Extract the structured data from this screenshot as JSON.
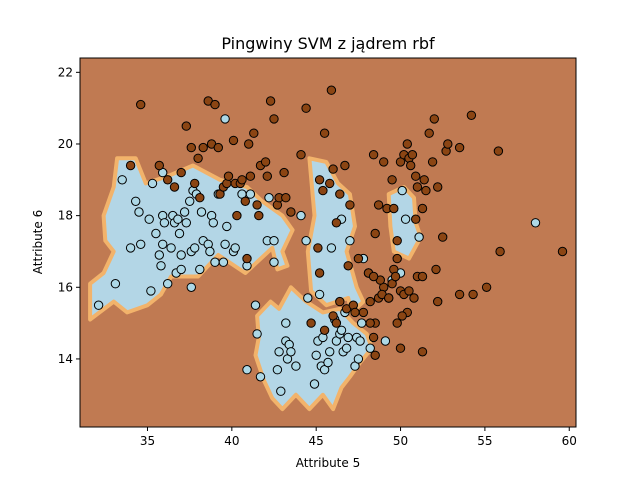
{
  "chart_data": {
    "type": "scatter",
    "title": "Pingwiny SVM z jądrem rbf",
    "xlabel": "Attribute 5",
    "ylabel": "Attribute 6",
    "xlim": [
      31.0,
      60.4
    ],
    "ylim": [
      12.1,
      22.4
    ],
    "x_ticks": [
      35,
      40,
      45,
      50,
      55,
      60
    ],
    "y_ticks": [
      14,
      16,
      18,
      20,
      22
    ],
    "grid": false,
    "legend": null,
    "background_region_color": "#c07a52",
    "decision_region_color": "#b3d6e6",
    "decision_border_color": "#f2b36b",
    "colors": {
      "class_0": "#add8e6",
      "class_1": "#8b4513",
      "edge": "#000000"
    },
    "decision_regions": [
      [
        [
          31.6,
          15.1
        ],
        [
          31.6,
          16.1
        ],
        [
          32.4,
          16.4
        ],
        [
          33.0,
          17.0
        ],
        [
          32.5,
          17.3
        ],
        [
          32.4,
          18.0
        ],
        [
          33.0,
          18.8
        ],
        [
          33.2,
          19.6
        ],
        [
          34.3,
          19.6
        ],
        [
          34.9,
          18.9
        ],
        [
          36.2,
          19.1
        ],
        [
          37.7,
          19.4
        ],
        [
          39.3,
          19.0
        ],
        [
          40.9,
          18.8
        ],
        [
          41.8,
          18.4
        ],
        [
          43.0,
          18.0
        ],
        [
          43.6,
          17.6
        ],
        [
          43.0,
          17.0
        ],
        [
          43.3,
          16.6
        ],
        [
          42.7,
          16.5
        ],
        [
          42.4,
          17.1
        ],
        [
          40.8,
          16.4
        ],
        [
          39.2,
          16.9
        ],
        [
          38.0,
          16.3
        ],
        [
          36.4,
          16.3
        ],
        [
          35.8,
          15.8
        ],
        [
          35.0,
          15.5
        ],
        [
          33.8,
          15.3
        ],
        [
          33.0,
          15.6
        ],
        [
          31.6,
          15.1
        ]
      ],
      [
        [
          44.6,
          19.6
        ],
        [
          45.6,
          19.5
        ],
        [
          46.3,
          18.9
        ],
        [
          47.0,
          18.6
        ],
        [
          47.3,
          17.7
        ],
        [
          46.8,
          17.0
        ],
        [
          47.4,
          16.0
        ],
        [
          47.8,
          15.6
        ],
        [
          47.1,
          15.3
        ],
        [
          46.9,
          15.7
        ],
        [
          45.6,
          15.5
        ],
        [
          44.7,
          15.9
        ],
        [
          44.5,
          17.0
        ],
        [
          44.9,
          18.0
        ],
        [
          44.6,
          19.6
        ]
      ],
      [
        [
          49.3,
          18.6
        ],
        [
          50.2,
          18.8
        ],
        [
          50.8,
          18.5
        ],
        [
          50.9,
          17.8
        ],
        [
          51.2,
          17.4
        ],
        [
          50.5,
          16.8
        ],
        [
          49.6,
          17.0
        ],
        [
          49.4,
          17.7
        ],
        [
          49.3,
          18.6
        ]
      ],
      [
        [
          41.5,
          15.2
        ],
        [
          42.3,
          15.6
        ],
        [
          42.8,
          15.4
        ],
        [
          43.5,
          16.0
        ],
        [
          44.4,
          15.6
        ],
        [
          45.4,
          15.3
        ],
        [
          46.4,
          15.4
        ],
        [
          47.2,
          15.0
        ],
        [
          48.0,
          14.7
        ],
        [
          48.3,
          14.3
        ],
        [
          47.6,
          13.9
        ],
        [
          47.0,
          13.5
        ],
        [
          46.5,
          13.2
        ],
        [
          46.0,
          12.6
        ],
        [
          45.4,
          13.0
        ],
        [
          44.6,
          12.6
        ],
        [
          43.8,
          13.0
        ],
        [
          43.0,
          12.6
        ],
        [
          42.4,
          12.9
        ],
        [
          41.9,
          13.4
        ],
        [
          41.4,
          14.1
        ],
        [
          41.6,
          14.6
        ],
        [
          41.5,
          15.2
        ]
      ]
    ],
    "series": [
      {
        "points": [
          [
            32.1,
            15.5
          ],
          [
            33.1,
            16.1
          ],
          [
            33.5,
            19.0
          ],
          [
            34.0,
            17.1
          ],
          [
            34.3,
            18.4
          ],
          [
            34.5,
            18.1
          ],
          [
            34.6,
            17.2
          ],
          [
            35.1,
            17.9
          ],
          [
            35.2,
            15.9
          ],
          [
            35.3,
            18.9
          ],
          [
            35.5,
            17.5
          ],
          [
            35.7,
            16.9
          ],
          [
            35.8,
            16.6
          ],
          [
            35.9,
            17.2
          ],
          [
            35.9,
            19.2
          ],
          [
            35.9,
            18.0
          ],
          [
            36.0,
            17.8
          ],
          [
            36.2,
            16.1
          ],
          [
            36.4,
            17.1
          ],
          [
            36.5,
            18.0
          ],
          [
            36.6,
            17.8
          ],
          [
            36.7,
            16.4
          ],
          [
            36.8,
            17.9
          ],
          [
            36.9,
            17.5
          ],
          [
            37.0,
            16.5
          ],
          [
            37.0,
            16.9
          ],
          [
            37.2,
            18.1
          ],
          [
            37.3,
            17.8
          ],
          [
            37.5,
            18.4
          ],
          [
            37.6,
            16.0
          ],
          [
            37.6,
            17.0
          ],
          [
            37.7,
            18.7
          ],
          [
            37.8,
            17.1
          ],
          [
            37.9,
            18.6
          ],
          [
            38.1,
            16.5
          ],
          [
            38.2,
            18.1
          ],
          [
            38.3,
            17.3
          ],
          [
            38.6,
            17.2
          ],
          [
            38.7,
            17.0
          ],
          [
            38.8,
            18.0
          ],
          [
            38.9,
            17.8
          ],
          [
            39.0,
            16.7
          ],
          [
            39.2,
            18.6
          ],
          [
            39.5,
            16.7
          ],
          [
            39.6,
            17.2
          ],
          [
            39.6,
            20.7
          ],
          [
            39.7,
            17.7
          ],
          [
            40.1,
            17.0
          ],
          [
            40.2,
            17.1
          ],
          [
            40.6,
            18.6
          ],
          [
            40.9,
            16.6
          ],
          [
            40.9,
            13.7
          ],
          [
            41.1,
            18.6
          ],
          [
            41.4,
            15.5
          ],
          [
            41.5,
            14.7
          ],
          [
            41.7,
            13.5
          ],
          [
            42.1,
            17.3
          ],
          [
            42.2,
            18.5
          ],
          [
            42.5,
            16.7
          ],
          [
            42.5,
            17.3
          ],
          [
            42.7,
            13.7
          ],
          [
            42.8,
            14.2
          ],
          [
            42.9,
            13.1
          ],
          [
            43.2,
            15.0
          ],
          [
            43.2,
            14.5
          ],
          [
            43.3,
            14.0
          ],
          [
            43.4,
            14.4
          ],
          [
            43.5,
            14.2
          ],
          [
            43.8,
            13.8
          ],
          [
            44.1,
            18.0
          ],
          [
            44.4,
            17.3
          ],
          [
            44.5,
            15.7
          ],
          [
            44.9,
            13.3
          ],
          [
            45.0,
            14.1
          ],
          [
            45.1,
            14.5
          ],
          [
            45.2,
            15.8
          ],
          [
            45.3,
            13.8
          ],
          [
            45.4,
            14.6
          ],
          [
            45.5,
            13.7
          ],
          [
            45.7,
            13.9
          ],
          [
            45.8,
            14.2
          ],
          [
            45.9,
            17.1
          ],
          [
            46.1,
            15.1
          ],
          [
            46.2,
            14.5
          ],
          [
            46.4,
            14.7
          ],
          [
            46.5,
            14.8
          ],
          [
            46.5,
            17.9
          ],
          [
            46.6,
            14.2
          ],
          [
            46.7,
            15.3
          ],
          [
            46.8,
            14.3
          ],
          [
            46.9,
            14.6
          ],
          [
            47.0,
            17.3
          ],
          [
            47.3,
            13.8
          ],
          [
            47.4,
            14.6
          ],
          [
            47.5,
            14.0
          ],
          [
            47.6,
            14.5
          ],
          [
            47.7,
            15.0
          ],
          [
            47.8,
            16.8
          ],
          [
            48.1,
            16.4
          ],
          [
            48.2,
            14.3
          ],
          [
            49.1,
            14.5
          ],
          [
            49.3,
            15.7
          ],
          [
            49.5,
            16.2
          ],
          [
            50.0,
            16.4
          ],
          [
            50.1,
            18.7
          ],
          [
            50.3,
            17.9
          ],
          [
            51.1,
            17.4
          ],
          [
            58.0,
            17.8
          ]
        ]
      },
      {
        "points": [
          [
            34.6,
            21.1
          ],
          [
            34.0,
            19.4
          ],
          [
            35.7,
            19.4
          ],
          [
            36.2,
            19.0
          ],
          [
            36.6,
            18.8
          ],
          [
            37.0,
            19.2
          ],
          [
            37.3,
            20.5
          ],
          [
            37.6,
            19.9
          ],
          [
            37.8,
            18.9
          ],
          [
            38.0,
            19.6
          ],
          [
            38.1,
            18.5
          ],
          [
            38.3,
            19.9
          ],
          [
            38.6,
            21.2
          ],
          [
            38.8,
            20.0
          ],
          [
            39.0,
            21.1
          ],
          [
            39.2,
            19.9
          ],
          [
            39.3,
            18.6
          ],
          [
            39.5,
            18.8
          ],
          [
            39.7,
            18.9
          ],
          [
            39.8,
            19.1
          ],
          [
            40.1,
            20.1
          ],
          [
            40.2,
            18.9
          ],
          [
            40.3,
            18.0
          ],
          [
            40.5,
            18.9
          ],
          [
            40.6,
            19.0
          ],
          [
            40.8,
            18.4
          ],
          [
            40.9,
            16.8
          ],
          [
            41.0,
            20.0
          ],
          [
            41.1,
            19.1
          ],
          [
            41.3,
            20.3
          ],
          [
            41.5,
            18.3
          ],
          [
            41.6,
            18.0
          ],
          [
            41.7,
            19.4
          ],
          [
            42.0,
            19.5
          ],
          [
            42.1,
            19.1
          ],
          [
            42.3,
            21.2
          ],
          [
            42.5,
            20.7
          ],
          [
            42.7,
            18.3
          ],
          [
            42.8,
            18.5
          ],
          [
            43.1,
            19.2
          ],
          [
            43.2,
            18.5
          ],
          [
            43.5,
            18.1
          ],
          [
            44.1,
            19.7
          ],
          [
            44.4,
            21.0
          ],
          [
            45.2,
            19.0
          ],
          [
            45.4,
            18.7
          ],
          [
            45.5,
            20.3
          ],
          [
            45.8,
            18.9
          ],
          [
            45.9,
            21.5
          ],
          [
            46.0,
            19.3
          ],
          [
            46.2,
            17.8
          ],
          [
            46.4,
            18.6
          ],
          [
            46.7,
            19.4
          ],
          [
            46.9,
            16.6
          ],
          [
            47.0,
            18.3
          ],
          [
            47.5,
            16.8
          ],
          [
            48.1,
            16.4
          ],
          [
            48.4,
            19.7
          ],
          [
            48.5,
            17.5
          ],
          [
            48.7,
            18.3
          ],
          [
            49.0,
            19.5
          ],
          [
            49.2,
            18.2
          ],
          [
            49.5,
            19.0
          ],
          [
            49.6,
            18.2
          ],
          [
            49.8,
            17.3
          ],
          [
            50.0,
            19.5
          ],
          [
            50.2,
            19.7
          ],
          [
            50.4,
            20.0
          ],
          [
            50.5,
            19.6
          ],
          [
            50.7,
            19.7
          ],
          [
            50.9,
            19.1
          ],
          [
            51.0,
            18.8
          ],
          [
            51.3,
            18.2
          ],
          [
            51.4,
            19.0
          ],
          [
            51.5,
            18.7
          ],
          [
            51.7,
            20.3
          ],
          [
            51.9,
            19.5
          ],
          [
            52.0,
            20.7
          ],
          [
            52.2,
            18.8
          ],
          [
            52.5,
            17.4
          ],
          [
            52.7,
            19.8
          ],
          [
            52.8,
            20.0
          ],
          [
            53.5,
            19.9
          ],
          [
            54.2,
            20.8
          ],
          [
            55.8,
            19.8
          ],
          [
            50.9,
            17.9
          ],
          [
            49.8,
            16.8
          ],
          [
            49.6,
            16.5
          ],
          [
            49.5,
            16.1
          ],
          [
            49.0,
            16.0
          ],
          [
            48.8,
            16.2
          ],
          [
            48.7,
            15.7
          ],
          [
            48.5,
            15.0
          ],
          [
            48.2,
            15.6
          ],
          [
            48.4,
            16.3
          ],
          [
            48.9,
            15.8
          ],
          [
            50.0,
            15.9
          ],
          [
            50.2,
            15.8
          ],
          [
            50.5,
            15.9
          ],
          [
            50.8,
            15.7
          ],
          [
            51.0,
            16.3
          ],
          [
            51.3,
            16.3
          ],
          [
            50.4,
            15.3
          ],
          [
            50.1,
            15.2
          ],
          [
            49.8,
            15.0
          ],
          [
            49.3,
            15.7
          ],
          [
            46.0,
            15.2
          ],
          [
            45.5,
            14.8
          ],
          [
            46.8,
            15.4
          ],
          [
            47.2,
            15.5
          ],
          [
            47.8,
            15.3
          ],
          [
            48.2,
            15.0
          ],
          [
            48.4,
            14.6
          ],
          [
            47.3,
            15.3
          ],
          [
            46.4,
            15.6
          ],
          [
            45.2,
            16.4
          ],
          [
            45.1,
            17.1
          ],
          [
            48.5,
            14.1
          ],
          [
            50.0,
            14.3
          ],
          [
            51.3,
            14.2
          ],
          [
            52.2,
            15.6
          ],
          [
            53.5,
            15.8
          ],
          [
            54.3,
            15.8
          ],
          [
            55.1,
            16.0
          ],
          [
            55.9,
            17.0
          ],
          [
            59.6,
            17.0
          ],
          [
            52.1,
            16.5
          ],
          [
            50.6,
            19.4
          ],
          [
            49.7,
            16.3
          ],
          [
            44.7,
            15.0
          ],
          [
            46.2,
            15.0
          ]
        ]
      }
    ]
  }
}
